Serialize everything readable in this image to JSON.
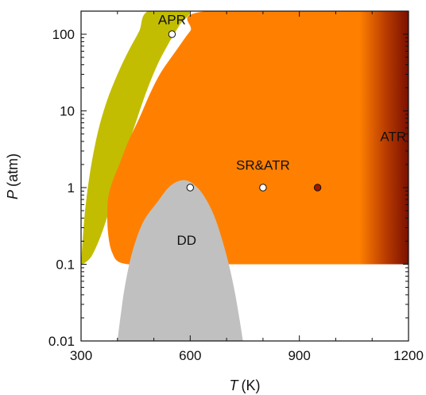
{
  "chart_data": {
    "type": "region-map",
    "xlabel": {
      "symbol": "T",
      "unit": "(K)"
    },
    "ylabel": {
      "symbol": "P",
      "unit": "(atm)"
    },
    "xlim": [
      300,
      1200
    ],
    "ylim": [
      0.01,
      200
    ],
    "yscale": "log",
    "xticks": [
      300,
      600,
      900,
      1200
    ],
    "yticks": [
      {
        "value": 0.01,
        "label": "0.01"
      },
      {
        "value": 0.1,
        "label": "0.1"
      },
      {
        "value": 1,
        "label": "1"
      },
      {
        "value": 10,
        "label": "10"
      },
      {
        "value": 100,
        "label": "100"
      }
    ],
    "regions": [
      {
        "label": "APR",
        "color": "#c2bd00",
        "label_at": [
          550,
          150
        ],
        "boundary": [
          [
            300,
            0.1
          ],
          [
            310,
            0.45
          ],
          [
            325,
            1.6
          ],
          [
            345,
            5
          ],
          [
            370,
            13
          ],
          [
            400,
            30
          ],
          [
            430,
            60
          ],
          [
            460,
            110
          ],
          [
            485,
            200
          ],
          [
            595,
            200
          ],
          [
            570,
            130
          ],
          [
            540,
            75
          ],
          [
            510,
            40
          ],
          [
            480,
            18
          ],
          [
            450,
            7
          ],
          [
            420,
            2.6
          ],
          [
            390,
            0.8
          ],
          [
            360,
            0.28
          ],
          [
            330,
            0.13
          ],
          [
            305,
            0.1
          ]
        ]
      },
      {
        "label": "SR&ATR",
        "color": "#ff8000",
        "label_at": [
          800,
          1.9
        ],
        "boundary": [
          [
            1200,
            0.1
          ],
          [
            1200,
            200
          ],
          [
            648,
            200
          ],
          [
            600,
            110
          ],
          [
            560,
            60
          ],
          [
            520,
            32
          ],
          [
            490,
            17
          ],
          [
            460,
            8
          ],
          [
            430,
            4
          ],
          [
            405,
            2
          ],
          [
            385,
            1.15
          ],
          [
            375,
            0.75
          ],
          [
            372,
            0.5
          ],
          [
            373,
            0.3
          ],
          [
            378,
            0.19
          ],
          [
            386,
            0.14
          ],
          [
            400,
            0.11
          ],
          [
            430,
            0.1
          ],
          [
            480,
            0.1
          ]
        ]
      },
      {
        "label": "ATR",
        "color": "#7a1000",
        "label_at": [
          1158,
          4.5
        ],
        "gradient_from_x": 1065
      },
      {
        "label": "DD",
        "color": "#c0c0c0",
        "label_at": [
          590,
          0.2
        ],
        "boundary": [
          [
            400,
            0.01
          ],
          [
            408,
            0.02
          ],
          [
            420,
            0.05
          ],
          [
            440,
            0.14
          ],
          [
            470,
            0.35
          ],
          [
            510,
            0.65
          ],
          [
            545,
            1.05
          ],
          [
            580,
            1.25
          ],
          [
            610,
            1.1
          ],
          [
            640,
            0.75
          ],
          [
            670,
            0.38
          ],
          [
            700,
            0.13
          ],
          [
            720,
            0.05
          ],
          [
            735,
            0.02
          ],
          [
            745,
            0.01
          ]
        ]
      }
    ],
    "points": [
      {
        "x": 550,
        "y": 100,
        "style": "open"
      },
      {
        "x": 600,
        "y": 1,
        "style": "open"
      },
      {
        "x": 800,
        "y": 1,
        "style": "open"
      },
      {
        "x": 950,
        "y": 1,
        "style": "filled",
        "color": "#a01800"
      }
    ]
  }
}
